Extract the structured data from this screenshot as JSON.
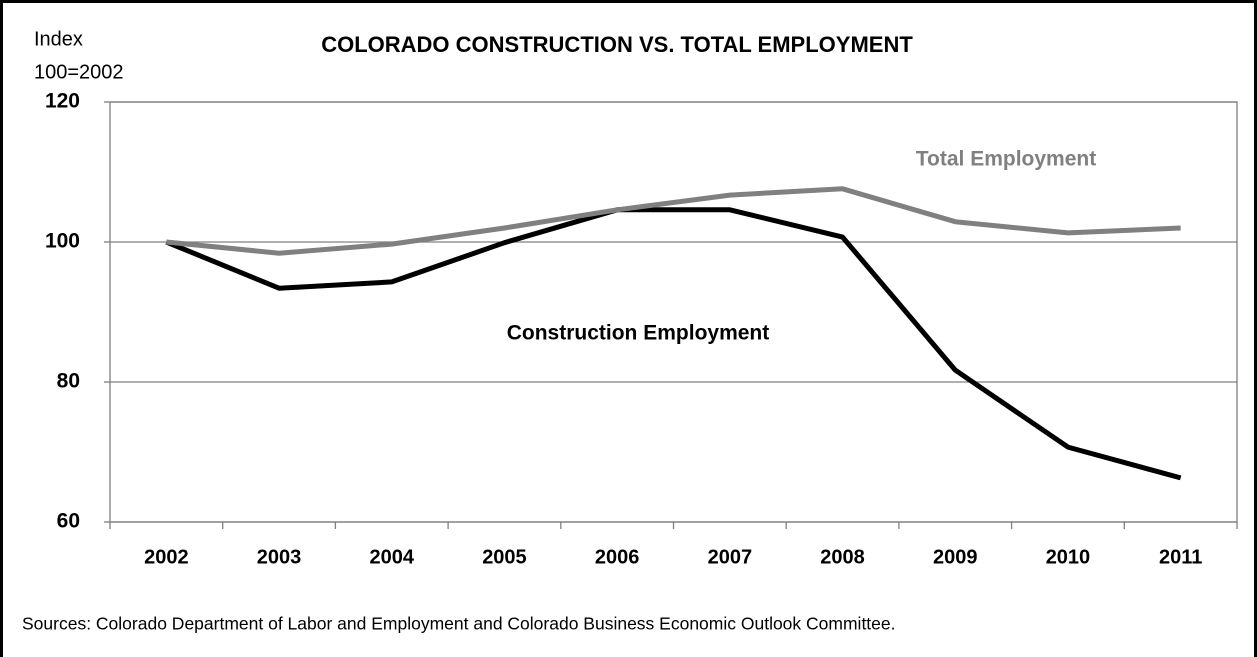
{
  "chart_data": {
    "type": "line",
    "title": "COLORADO CONSTRUCTION VS. TOTAL EMPLOYMENT",
    "ylabel": [
      "Index",
      "100=2002"
    ],
    "categories": [
      "2002",
      "2003",
      "2004",
      "2005",
      "2006",
      "2007",
      "2008",
      "2009",
      "2010",
      "2011"
    ],
    "series": [
      {
        "name": "Construction Employment",
        "color": "#000000",
        "values": [
          100,
          93.4,
          94.3,
          99.9,
          104.6,
          104.6,
          100.7,
          81.7,
          70.7,
          66.3
        ]
      },
      {
        "name": "Total Employment",
        "color": "#808080",
        "values": [
          100,
          98.4,
          99.7,
          102,
          104.6,
          106.7,
          107.6,
          102.9,
          101.3,
          102
        ]
      }
    ],
    "ylim": [
      60,
      120
    ],
    "yticks": [
      60,
      80,
      100,
      120
    ],
    "grid": true,
    "source": "Sources:  Colorado Department of Labor and Employment and Colorado Business Economic Outlook Committee."
  }
}
